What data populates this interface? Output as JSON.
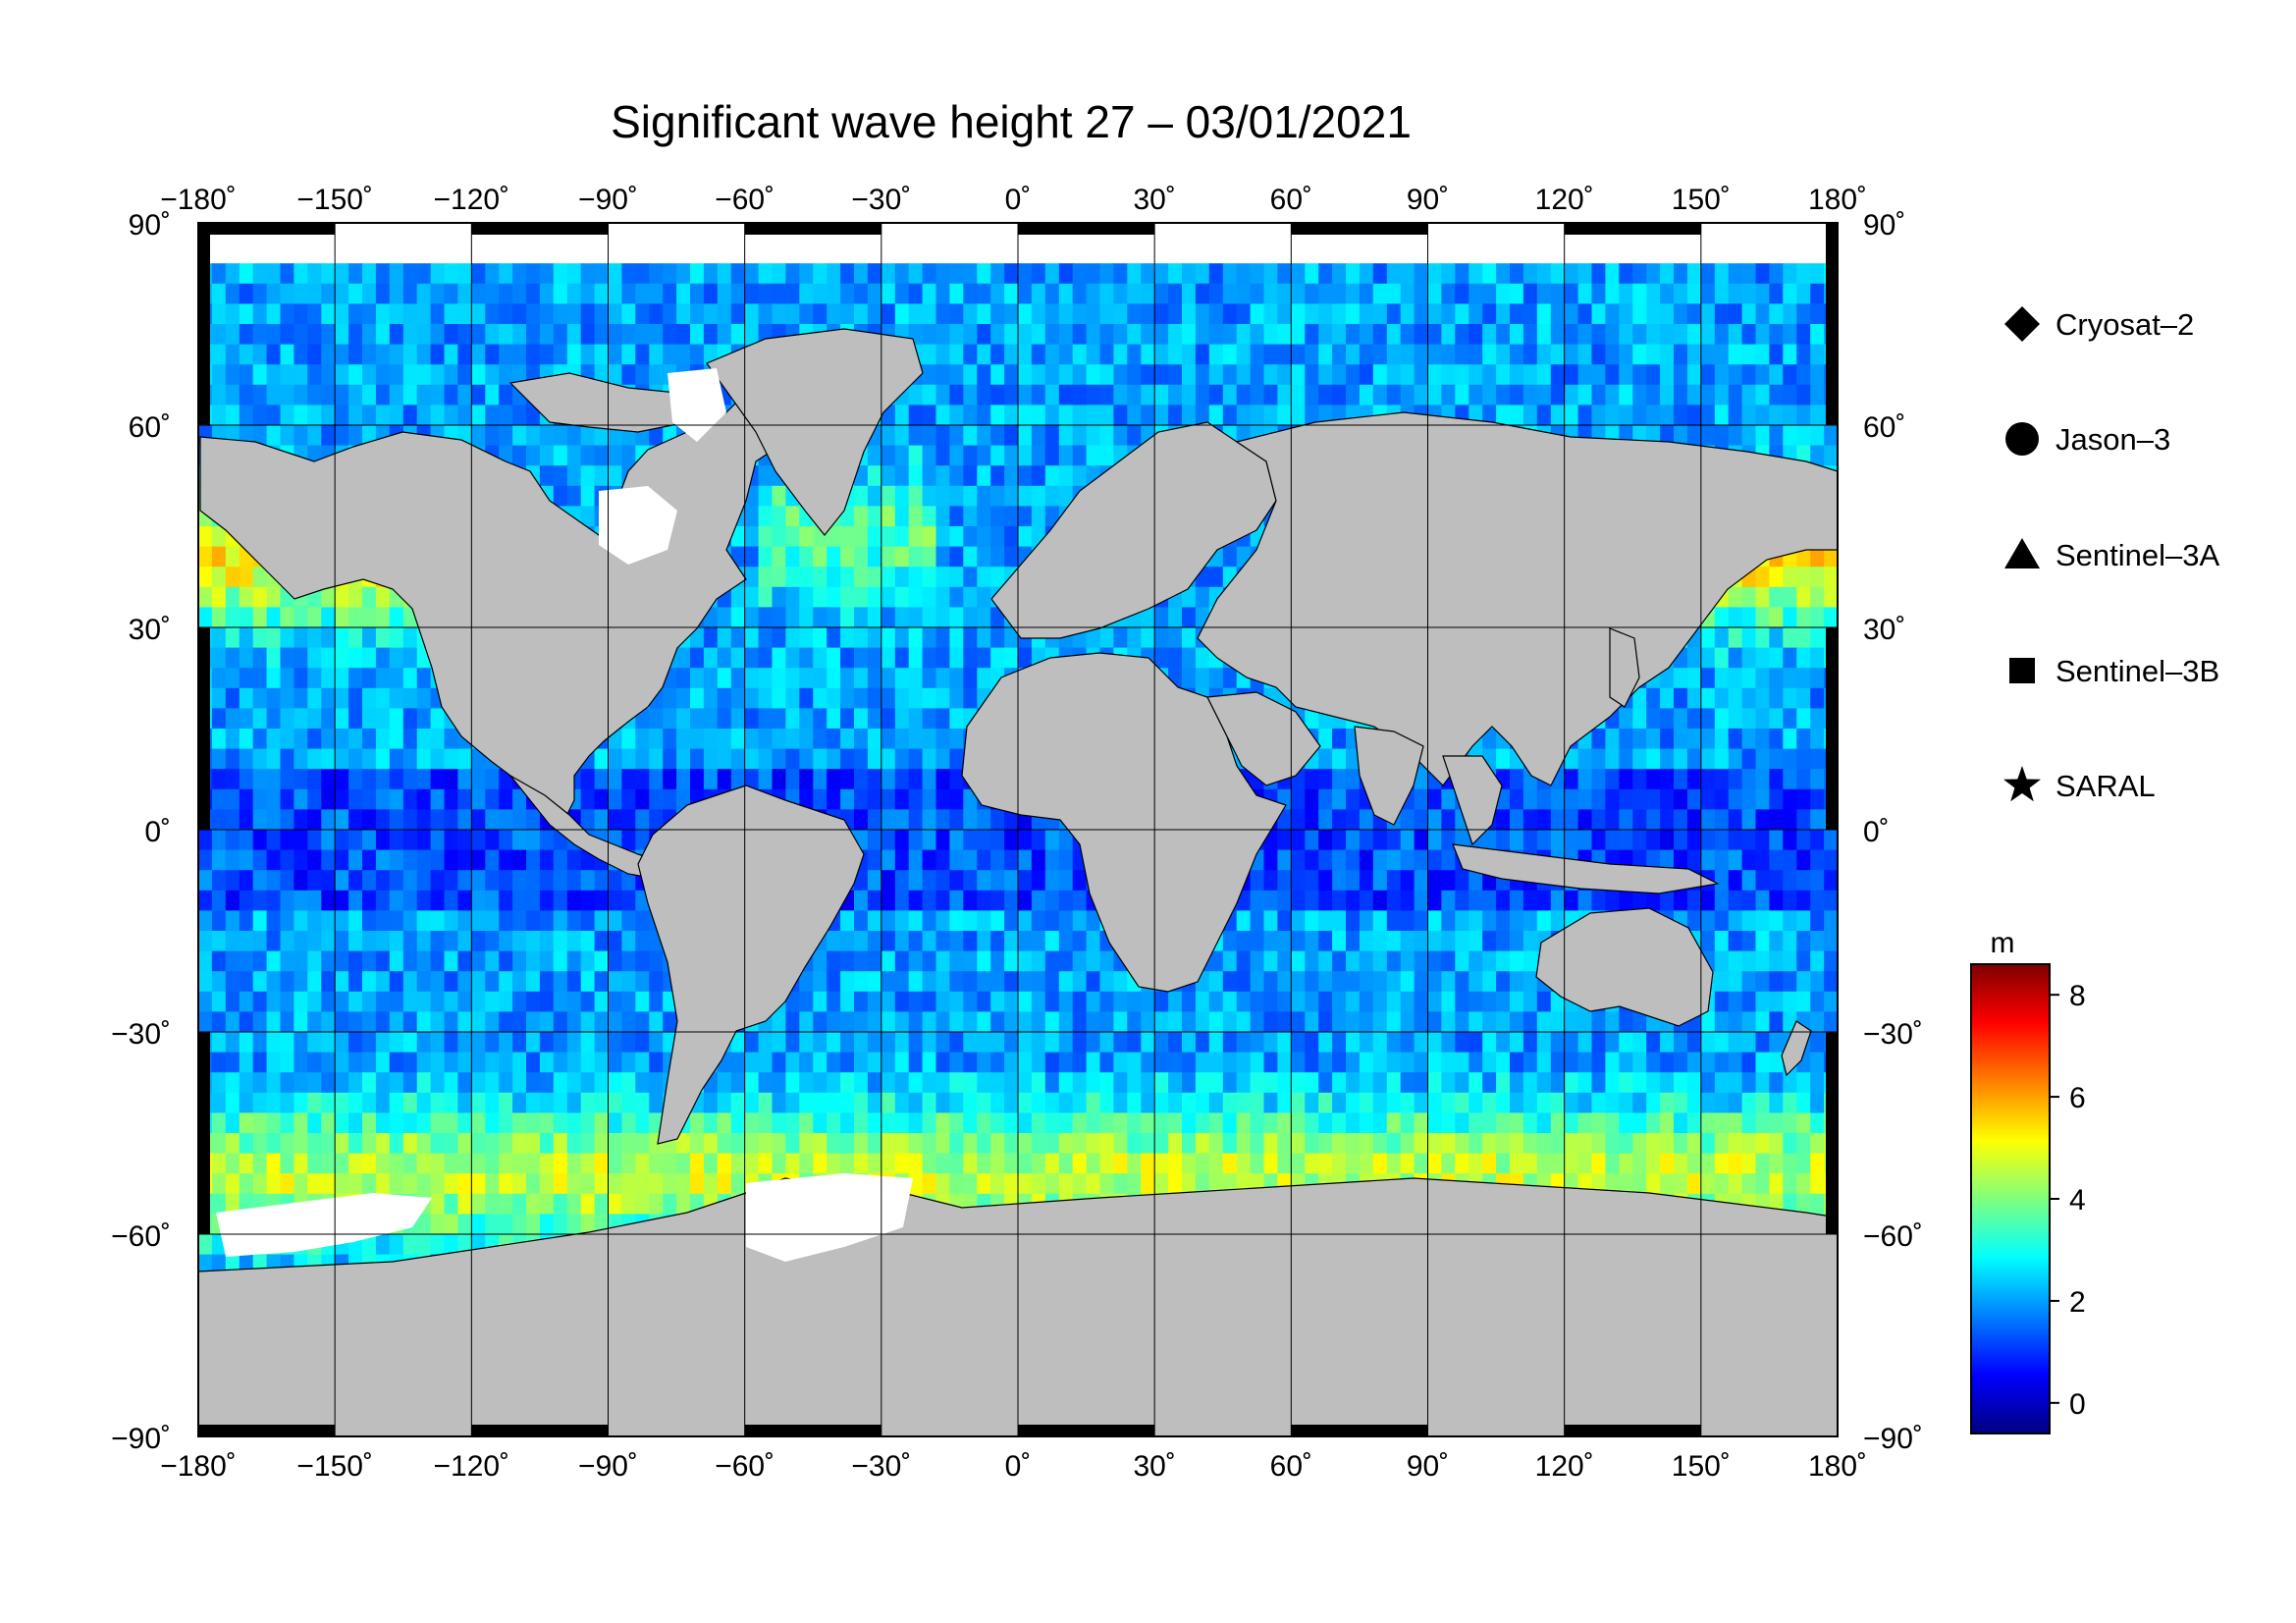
{
  "title": "Significant wave height 27 – 03/01/2021",
  "map": {
    "projection": "equirectangular",
    "lon_range": [
      -180,
      180
    ],
    "lat_range": [
      -90,
      90
    ],
    "lon_ticks": [
      -180,
      -150,
      -120,
      -90,
      -60,
      -30,
      0,
      30,
      60,
      90,
      120,
      150,
      180
    ],
    "lat_ticks": [
      90,
      60,
      30,
      0,
      -30,
      -60,
      -90
    ],
    "lon_tick_labels": [
      "−180˚",
      "−150˚",
      "−120˚",
      "−90˚",
      "−60˚",
      "−30˚",
      "0˚",
      "30˚",
      "60˚",
      "90˚",
      "120˚",
      "150˚",
      "180˚"
    ],
    "lat_tick_labels": [
      "90˚",
      "60˚",
      "30˚",
      "0˚",
      "−30˚",
      "−60˚",
      "−90˚"
    ],
    "grid": true,
    "land_color": "#bebebe",
    "sea_ice_color": "#ffffff",
    "frame_ticks_color": "#000000"
  },
  "legend": {
    "placement": "right",
    "items": [
      {
        "label": "Cryosat–2",
        "symbol": "diamond"
      },
      {
        "label": "Jason–3",
        "symbol": "circle"
      },
      {
        "label": "Sentinel–3A",
        "symbol": "triangle"
      },
      {
        "label": "Sentinel–3B",
        "symbol": "square"
      },
      {
        "label": "SARAL",
        "symbol": "star"
      }
    ]
  },
  "colorbar": {
    "unit": "m",
    "min": -0.6,
    "max": 8.6,
    "tick_values": [
      8,
      6,
      4,
      2,
      0
    ],
    "tick_labels": [
      "8",
      "6",
      "4",
      "2",
      "0"
    ],
    "colormap": [
      "#00007f",
      "#0000ff",
      "#007fff",
      "#00ffff",
      "#7fff7f",
      "#ffff00",
      "#ff7f00",
      "#ff0000",
      "#7f0000"
    ]
  }
}
